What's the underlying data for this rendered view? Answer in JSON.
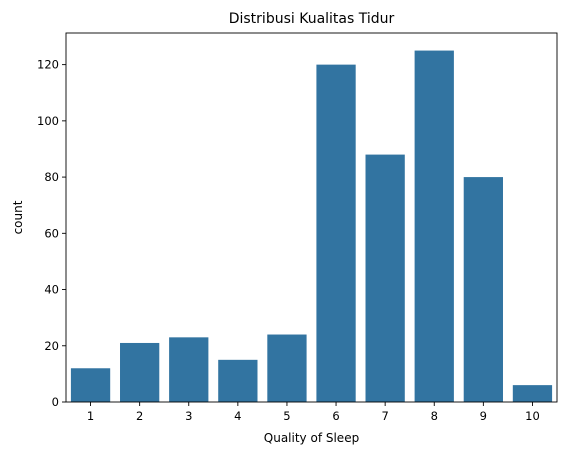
{
  "chart_data": {
    "type": "bar",
    "title": "Distribusi Kualitas Tidur",
    "xlabel": "Quality of Sleep",
    "ylabel": "count",
    "categories": [
      "1",
      "2",
      "3",
      "4",
      "5",
      "6",
      "7",
      "8",
      "9",
      "10"
    ],
    "values": [
      12,
      21,
      23,
      15,
      24,
      120,
      88,
      125,
      80,
      6
    ],
    "yticks": [
      0,
      20,
      40,
      60,
      80,
      100,
      120
    ],
    "ylim": [
      0,
      131.25
    ],
    "grid": false,
    "bar_color": "#3274a1"
  }
}
